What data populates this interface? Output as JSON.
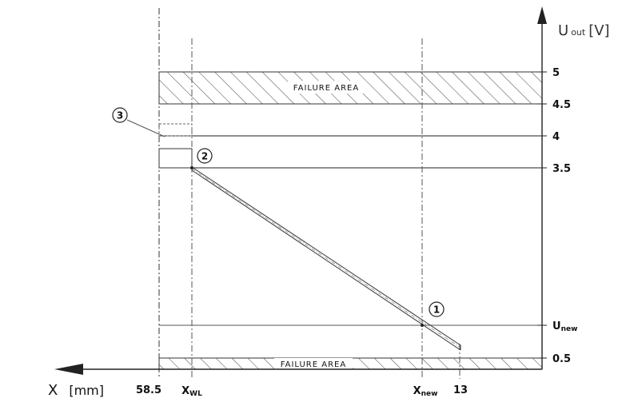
{
  "diagram": {
    "y_axis": {
      "title_main": "U",
      "title_sub": "out",
      "title_unit": "[V]"
    },
    "x_axis": {
      "title": "X",
      "unit": "[mm]"
    },
    "y_ticks": {
      "t5": "5",
      "t45": "4.5",
      "t4": "4",
      "t35": "3.5",
      "tnew_main": "U",
      "tnew_sub": "new",
      "t05": "0.5"
    },
    "x_ticks": {
      "t585": "58.5",
      "twl_main": "X",
      "twl_sub": "WL",
      "tnew_main": "X",
      "tnew_sub": "new",
      "t13": "13"
    },
    "failure_areas": {
      "upper": "FAILURE  AREA",
      "lower": "FAILURE  AREA"
    },
    "markers": {
      "m1": "1",
      "m2": "2",
      "m3": "3"
    }
  }
}
